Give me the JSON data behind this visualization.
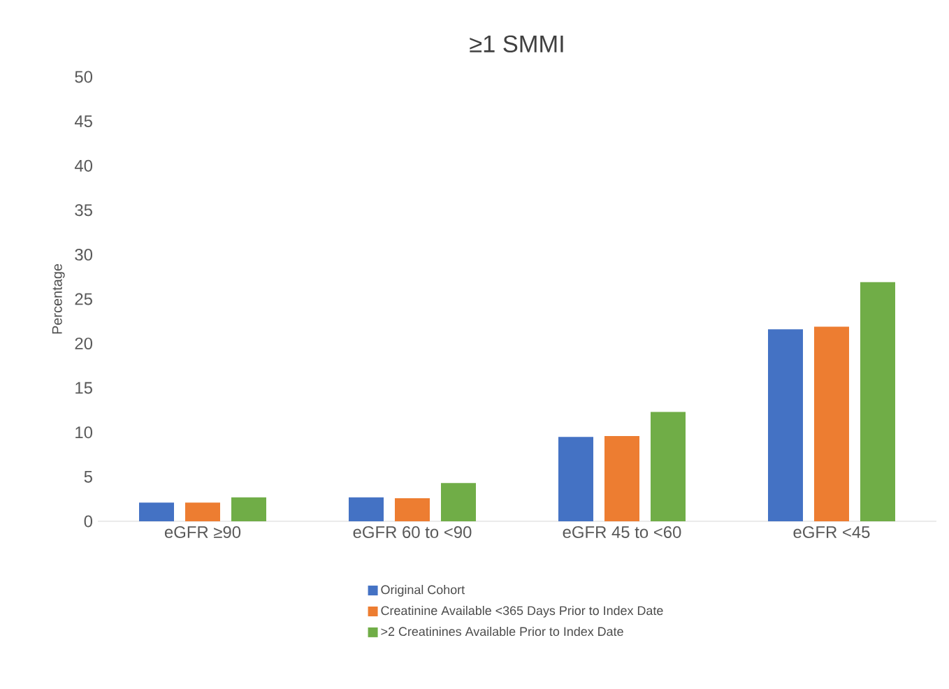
{
  "chart_data": {
    "type": "bar",
    "title": "≥1 SMMI",
    "ylabel": "Percentage",
    "categories": [
      "eGFR ≥90",
      "eGFR 60 to <90",
      "eGFR 45 to <60",
      "eGFR <45"
    ],
    "series": [
      {
        "name": "Original Cohort",
        "color": "#4472c4",
        "values": [
          2.1,
          2.7,
          9.5,
          21.6
        ]
      },
      {
        "name": "Creatinine Available <365 Days Prior to Index Date",
        "color": "#ed7d31",
        "values": [
          2.1,
          2.6,
          9.6,
          21.9
        ]
      },
      {
        "name": ">2 Creatinines Available Prior to Index Date",
        "color": "#70ad47",
        "values": [
          2.7,
          4.3,
          12.3,
          26.9
        ]
      }
    ],
    "ylim": [
      0,
      50
    ],
    "yticks": [
      0,
      5,
      10,
      15,
      20,
      25,
      30,
      35,
      40,
      45,
      50
    ],
    "legend": "bottom"
  }
}
